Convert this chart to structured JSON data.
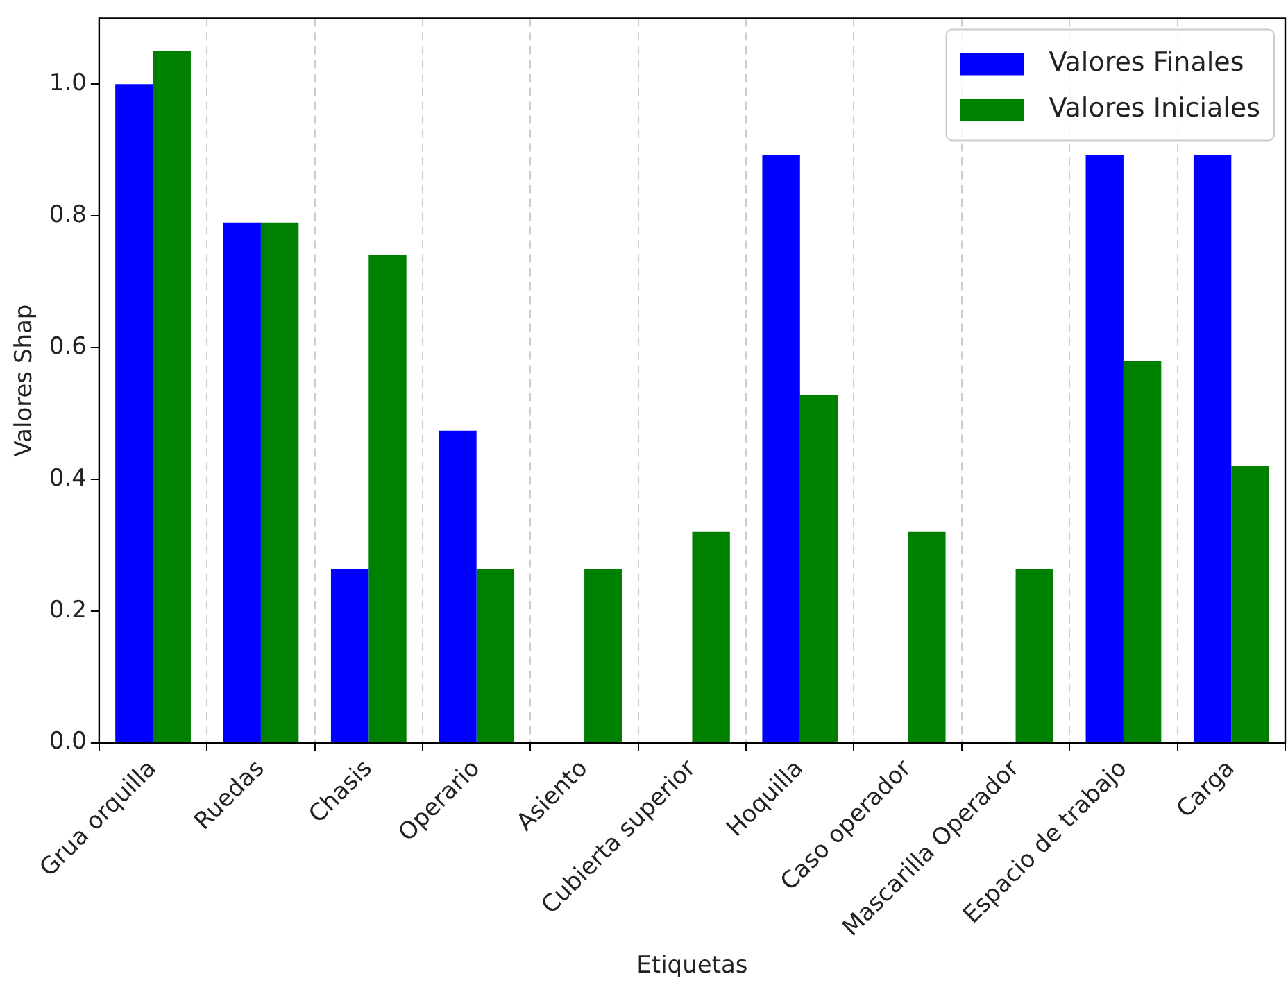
{
  "chart_data": {
    "type": "bar",
    "xlabel": "Etiquetas",
    "ylabel": "Valores Shap",
    "categories": [
      "Grua orquilla",
      "Ruedas",
      "Chasis",
      "Operario",
      "Asiento",
      "Cubierta superior",
      "Hoquilla",
      "Caso operador",
      "Mascarilla Operador",
      "Espacio de trabajo",
      "Carga"
    ],
    "series": [
      {
        "name": "Valores Finales",
        "color": "#0000ff",
        "values": [
          1.0,
          0.79,
          0.264,
          0.474,
          0,
          0,
          0.893,
          0,
          0,
          0.893,
          0.893
        ]
      },
      {
        "name": "Valores Iniciales",
        "color": "#008000",
        "values": [
          1.051,
          0.79,
          0.741,
          0.264,
          0.264,
          0.32,
          0.528,
          0.32,
          0.264,
          0.579,
          0.42
        ]
      }
    ],
    "ylim": [
      0,
      1.1
    ],
    "yticks": [
      {
        "value": 0,
        "label": "0.0"
      },
      {
        "value": 0.2,
        "label": "0.2"
      },
      {
        "value": 0.4,
        "label": "0.4"
      },
      {
        "value": 0.6,
        "label": "0.6"
      },
      {
        "value": 0.8,
        "label": "0.8"
      },
      {
        "value": 1.0,
        "label": "1.0"
      }
    ],
    "grid": "x",
    "legend": "top right"
  }
}
